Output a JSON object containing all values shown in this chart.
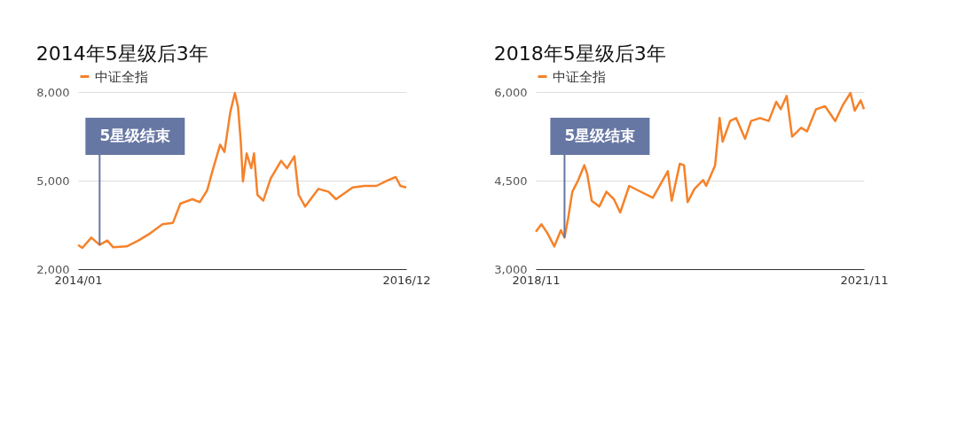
{
  "chart_data": [
    {
      "type": "line",
      "title": "2014年5星级后3年",
      "legend": "top left",
      "grid": "y",
      "marker": "none",
      "line_style": "solid",
      "xlim": [
        "2014-01",
        "2016-12"
      ],
      "xticks": [
        {
          "value": "2014-01",
          "label": "2014/01"
        },
        {
          "value": "2016-12",
          "label": "2016/12"
        }
      ],
      "ylim": [
        2000,
        8000
      ],
      "yticks": [
        {
          "value": 2000,
          "label": "2,000"
        },
        {
          "value": 5000,
          "label": "5,000"
        },
        {
          "value": 8000,
          "label": "8,000"
        }
      ],
      "annotations": [
        {
          "text": "5星级结束",
          "x": "2014-03-12",
          "y": 2820
        }
      ],
      "series": [
        {
          "name": "中证全指",
          "color": "#f5822a",
          "x": [
            "2014-01-01",
            "2014-01-15",
            "2014-02-13",
            "2014-03-12",
            "2014-04-06",
            "2014-04-25",
            "2014-06-08",
            "2014-07-16",
            "2014-08-24",
            "2014-10-02",
            "2014-11-05",
            "2014-11-29",
            "2015-01-07",
            "2015-01-31",
            "2015-02-24",
            "2015-03-13",
            "2015-04-07",
            "2015-04-21",
            "2015-05-10",
            "2015-05-25",
            "2015-06-04",
            "2015-06-13",
            "2015-06-20",
            "2015-07-02",
            "2015-07-17",
            "2015-07-26",
            "2015-08-06",
            "2015-08-25",
            "2015-09-18",
            "2015-10-22",
            "2015-11-10",
            "2015-12-04",
            "2015-12-18",
            "2016-01-08",
            "2016-02-20",
            "2016-03-24",
            "2016-04-17",
            "2016-06-10",
            "2016-07-18",
            "2016-08-26",
            "2016-10-04",
            "2016-10-28",
            "2016-11-12",
            "2016-12-01"
          ],
          "values": [
            2820,
            2720,
            3070,
            2820,
            2970,
            2740,
            2770,
            2970,
            3220,
            3520,
            3570,
            4220,
            4370,
            4270,
            4670,
            5320,
            6220,
            5970,
            7320,
            7970,
            7500,
            6320,
            4970,
            5920,
            5420,
            5920,
            4520,
            4320,
            5070,
            5670,
            5420,
            5820,
            4520,
            4120,
            4720,
            4620,
            4370,
            4770,
            4820,
            4820,
            5020,
            5120,
            4820,
            4770
          ]
        }
      ]
    },
    {
      "type": "line",
      "title": "2018年5星级后3年",
      "legend": "top left",
      "grid": "y",
      "marker": "none",
      "line_style": "solid",
      "xlim": [
        "2018-11",
        "2021-11"
      ],
      "xticks": [
        {
          "value": "2018-11",
          "label": "2018/11"
        },
        {
          "value": "2021-11",
          "label": "2021/11"
        }
      ],
      "ylim": [
        3000,
        6000
      ],
      "yticks": [
        {
          "value": 3000,
          "label": "3,000"
        },
        {
          "value": 4500,
          "label": "4,500"
        },
        {
          "value": 6000,
          "label": "6,000"
        }
      ],
      "annotations": [
        {
          "text": "5星级结束",
          "x": "2019-02-05",
          "y": 3535
        }
      ],
      "series": [
        {
          "name": "中证全指",
          "color": "#f5822a",
          "x": [
            "2018-11-01",
            "2018-11-20",
            "2018-12-10",
            "2019-01-02",
            "2019-01-24",
            "2019-02-05",
            "2019-02-17",
            "2019-03-03",
            "2019-03-23",
            "2019-04-12",
            "2019-04-22",
            "2019-05-07",
            "2019-06-01",
            "2019-06-25",
            "2019-07-20",
            "2019-08-10",
            "2019-09-09",
            "2019-10-08",
            "2019-11-27",
            "2020-01-16",
            "2020-01-29",
            "2020-02-25",
            "2020-03-10",
            "2020-03-22",
            "2020-04-14",
            "2020-05-13",
            "2020-05-23",
            "2020-06-22",
            "2020-07-07",
            "2020-07-17",
            "2020-08-11",
            "2020-08-31",
            "2020-09-30",
            "2020-10-20",
            "2020-11-19",
            "2020-12-18",
            "2021-01-12",
            "2021-01-27",
            "2021-02-16",
            "2021-03-06",
            "2021-04-05",
            "2021-04-25",
            "2021-05-25",
            "2021-06-24",
            "2021-07-28",
            "2021-08-23",
            "2021-09-17",
            "2021-10-01",
            "2021-10-21",
            "2021-11-01"
          ],
          "values": [
            3635,
            3760,
            3610,
            3385,
            3660,
            3535,
            3860,
            4310,
            4510,
            4760,
            4610,
            4160,
            4060,
            4310,
            4185,
            3960,
            4410,
            4335,
            4210,
            4660,
            4160,
            4785,
            4760,
            4135,
            4360,
            4510,
            4410,
            4760,
            5560,
            5160,
            5510,
            5560,
            5210,
            5510,
            5560,
            5510,
            5835,
            5710,
            5935,
            5245,
            5395,
            5335,
            5710,
            5760,
            5510,
            5785,
            5985,
            5685,
            5860,
            5710
          ]
        }
      ]
    }
  ]
}
